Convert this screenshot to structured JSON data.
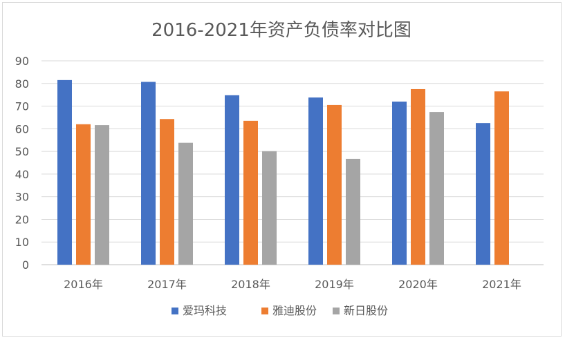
{
  "chart_data": {
    "type": "bar",
    "title": "2016-2021年资产负债率对比图",
    "categories": [
      "2016年",
      "2017年",
      "2018年",
      "2019年",
      "2020年",
      "2021年"
    ],
    "series": [
      {
        "name": "爱玛科技",
        "color": "#4472c4",
        "values": [
          81.5,
          80.7,
          74.8,
          73.8,
          72.0,
          62.5
        ]
      },
      {
        "name": "雅迪股份",
        "color": "#ed7d31",
        "values": [
          62.0,
          64.3,
          63.5,
          70.5,
          77.5,
          76.5
        ]
      },
      {
        "name": "新日股份",
        "color": "#a5a5a5",
        "values": [
          61.6,
          53.8,
          50.1,
          46.7,
          67.4,
          null
        ]
      }
    ],
    "ylim": [
      0,
      90
    ],
    "yticks": [
      0,
      10,
      20,
      30,
      40,
      50,
      60,
      70,
      80,
      90
    ],
    "grid": true,
    "legend": "bottom"
  }
}
